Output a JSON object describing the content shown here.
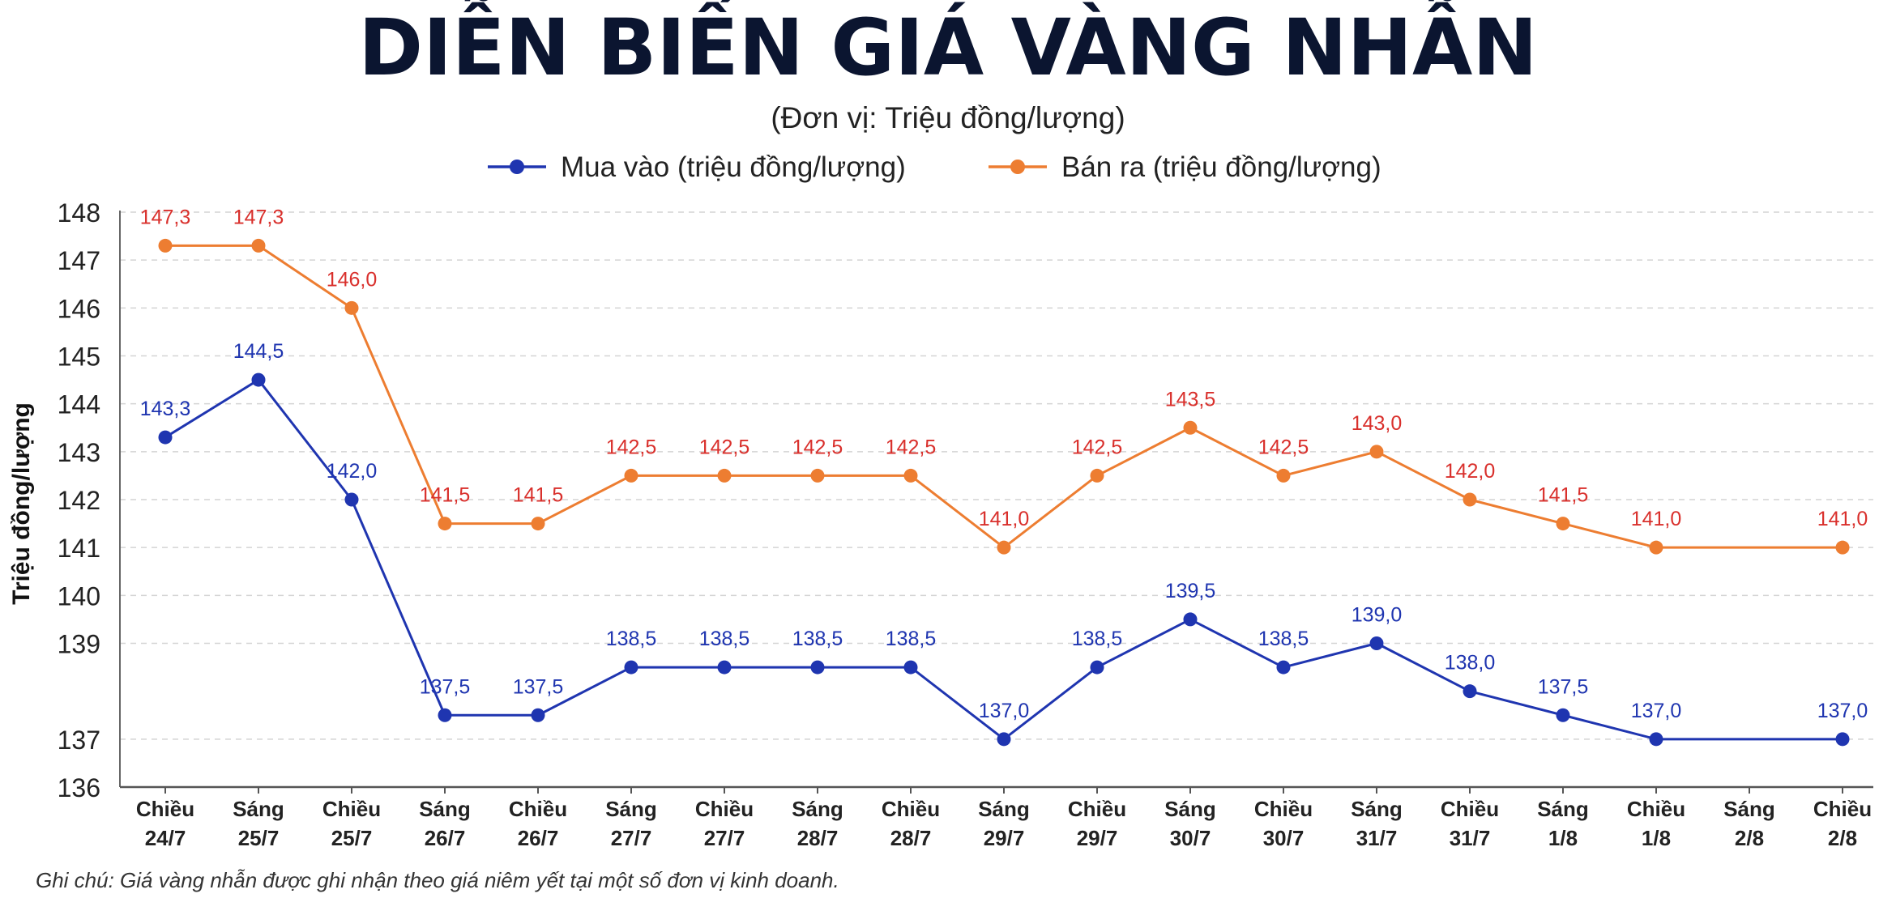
{
  "chart_data": {
    "type": "line",
    "title": "DIỄN BIẾN GIÁ VÀNG NHẪN",
    "subtitle": "(Đơn vị: Triệu đồng/lượng)",
    "xlabel": "",
    "ylabel": "Triệu đồng/lượng",
    "ylim": [
      136,
      148
    ],
    "yticks": [
      "136",
      "137",
      "139",
      "140",
      "141",
      "142",
      "143",
      "144",
      "145",
      "146",
      "147",
      "148"
    ],
    "categories": [
      [
        "Chiều",
        "24/7"
      ],
      [
        "Sáng",
        "25/7"
      ],
      [
        "Chiều",
        "25/7"
      ],
      [
        "Sáng",
        "26/7"
      ],
      [
        "Chiều",
        "26/7"
      ],
      [
        "Sáng",
        "27/7"
      ],
      [
        "Chiều",
        "27/7"
      ],
      [
        "Sáng",
        "28/7"
      ],
      [
        "Chiều",
        "28/7"
      ],
      [
        "Sáng",
        "29/7"
      ],
      [
        "Chiều",
        "29/7"
      ],
      [
        "Sáng",
        "30/7"
      ],
      [
        "Chiều",
        "30/7"
      ],
      [
        "Sáng",
        "31/7"
      ],
      [
        "Chiều",
        "31/7"
      ],
      [
        "Sáng",
        "1/8"
      ],
      [
        "Chiều",
        "1/8"
      ],
      [
        "Sáng",
        "2/8"
      ],
      [
        "Chiều",
        "2/8"
      ]
    ],
    "grid": true,
    "legend_position": "top-center",
    "series": [
      {
        "name": "Mua vào (triệu đồng/lượng)",
        "color": "#1f35b0",
        "values": [
          143.3,
          144.5,
          142.0,
          137.5,
          137.5,
          138.5,
          138.5,
          138.5,
          138.5,
          137.0,
          138.5,
          139.5,
          138.5,
          139.0,
          138.0,
          137.5,
          137.0,
          null,
          137.0
        ],
        "labels": [
          "143,3",
          "144,5",
          "142,0",
          "137,5",
          "137,5",
          "138,5",
          "138,5",
          "138,5",
          "138,5",
          "137,0",
          "138,5",
          "139,5",
          "138,5",
          "139,0",
          "138,0",
          "137,5",
          "137,0",
          null,
          "137,0"
        ]
      },
      {
        "name": "Bán ra (triệu đồng/lượng)",
        "color": "#ed7d31",
        "label_color": "#d9302c",
        "values": [
          147.3,
          147.3,
          146.0,
          141.5,
          141.5,
          142.5,
          142.5,
          142.5,
          142.5,
          141.0,
          142.5,
          143.5,
          142.5,
          143.0,
          142.0,
          141.5,
          141.0,
          null,
          141.0
        ],
        "labels": [
          "147,3",
          "147,3",
          "146,0",
          "141,5",
          "141,5",
          "142,5",
          "142,5",
          "142,5",
          "142,5",
          "141,0",
          "142,5",
          "143,5",
          "142,5",
          "143,0",
          "142,0",
          "141,5",
          "141,0",
          null,
          "141,0"
        ]
      }
    ],
    "note": "Ghi chú: Giá vàng nhẫn được ghi nhận theo giá niêm yết tại một số đơn vị kinh doanh."
  }
}
